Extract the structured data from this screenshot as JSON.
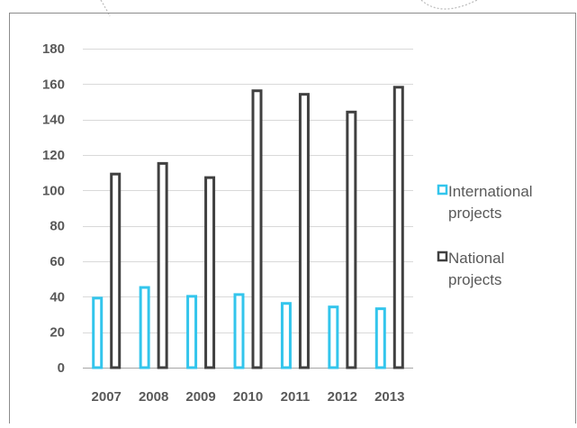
{
  "chart_data": {
    "type": "bar",
    "title": "",
    "xlabel": "",
    "ylabel": "",
    "categories": [
      "2007",
      "2008",
      "2009",
      "2010",
      "2011",
      "2012",
      "2013"
    ],
    "series": [
      {
        "name": "International projects",
        "legend_lines": [
          "International",
          "projects"
        ],
        "color": "#33c5ec",
        "values": [
          40,
          46,
          41,
          42,
          37,
          35,
          34
        ]
      },
      {
        "name": "National projects",
        "legend_lines": [
          "National",
          "projects"
        ],
        "color": "#404040",
        "values": [
          110,
          116,
          108,
          157,
          155,
          145,
          159
        ]
      }
    ],
    "ylim": [
      0,
      180
    ],
    "yticks": [
      0,
      20,
      40,
      60,
      80,
      100,
      120,
      140,
      160,
      180
    ],
    "grid": true,
    "legend_position": "right"
  }
}
